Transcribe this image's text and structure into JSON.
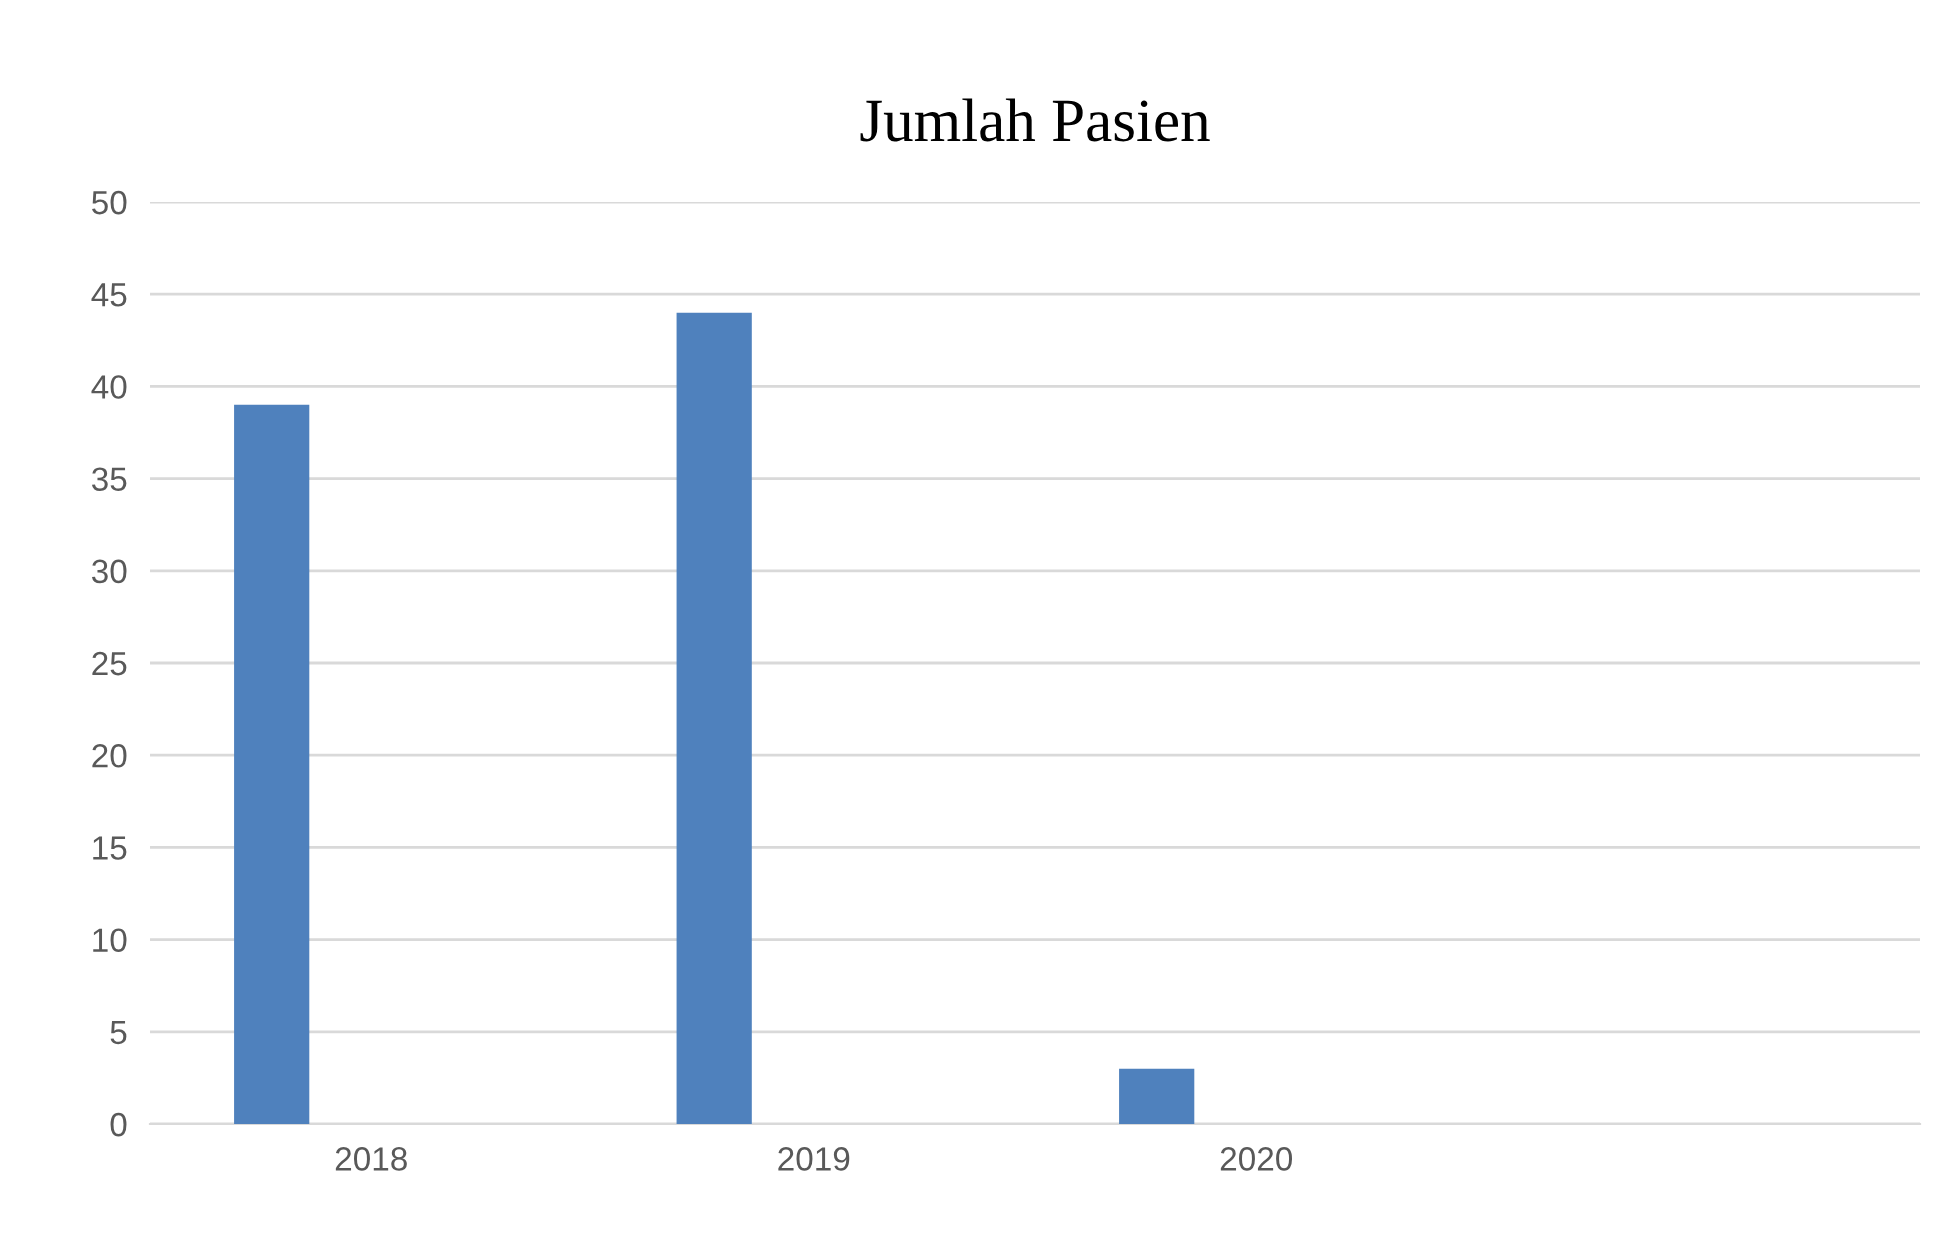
{
  "chart_data": {
    "type": "bar",
    "title": "Jumlah Pasien",
    "categories": [
      "2018",
      "2019",
      "2020",
      null
    ],
    "values": [
      39,
      44,
      3,
      null
    ],
    "color": "#4f81bd",
    "ylim": [
      0,
      50
    ],
    "yticks": [
      0,
      5,
      10,
      15,
      20,
      25,
      30,
      35,
      40,
      45,
      50
    ],
    "grid": "y",
    "legend": false
  }
}
